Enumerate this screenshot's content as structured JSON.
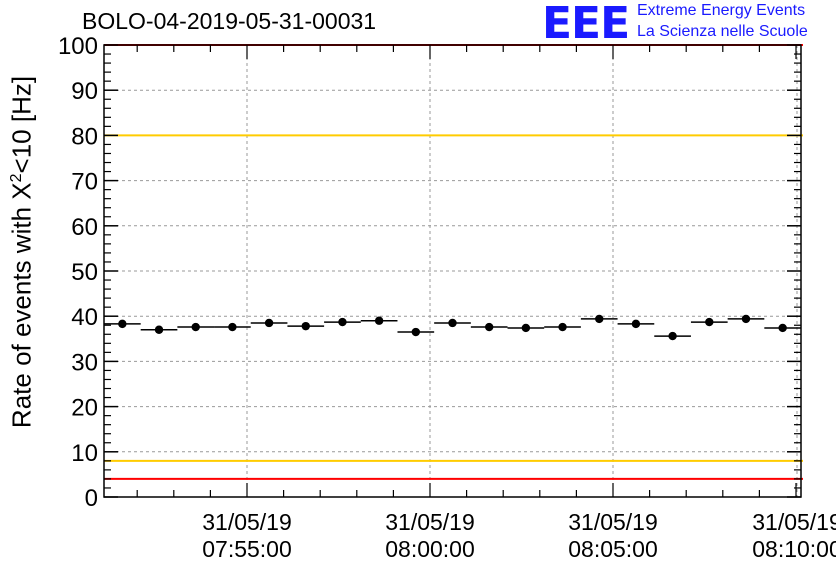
{
  "chart_data": {
    "type": "scatter",
    "title": "BOLO-04-2019-05-31-00031",
    "ylabel_prefix": "Rate of events with X",
    "ylabel_sup": "2",
    "ylabel_suffix": "<10 [Hz]",
    "xlabel": "",
    "ylim": [
      0,
      100
    ],
    "yticks": [
      "0",
      "10",
      "20",
      "30",
      "40",
      "50",
      "60",
      "70",
      "80",
      "90",
      "100"
    ],
    "xticks": [
      {
        "date": "31/05/19",
        "time": "07:55:00"
      },
      {
        "date": "31/05/19",
        "time": "08:00:00"
      },
      {
        "date": "31/05/19",
        "time": "08:05:00"
      },
      {
        "date": "31/05/19",
        "time": "08:10:00"
      }
    ],
    "grid": true,
    "reference_lines": [
      {
        "value": 100,
        "color": "#ff0000"
      },
      {
        "value": 80,
        "color": "#ffcc00"
      },
      {
        "value": 8,
        "color": "#ffcc00"
      },
      {
        "value": 4,
        "color": "#ff0000"
      }
    ],
    "series": [
      {
        "name": "rate",
        "values": [
          38.3,
          37.0,
          37.6,
          37.6,
          38.5,
          37.8,
          38.7,
          39.0,
          36.5,
          38.5,
          37.6,
          37.4,
          37.6,
          39.4,
          38.3,
          35.6,
          38.7,
          39.4,
          37.4
        ]
      }
    ]
  },
  "logo": {
    "mark": "EEE",
    "line1": "Extreme Energy Events",
    "line2": "La Scienza nelle Scuole"
  }
}
